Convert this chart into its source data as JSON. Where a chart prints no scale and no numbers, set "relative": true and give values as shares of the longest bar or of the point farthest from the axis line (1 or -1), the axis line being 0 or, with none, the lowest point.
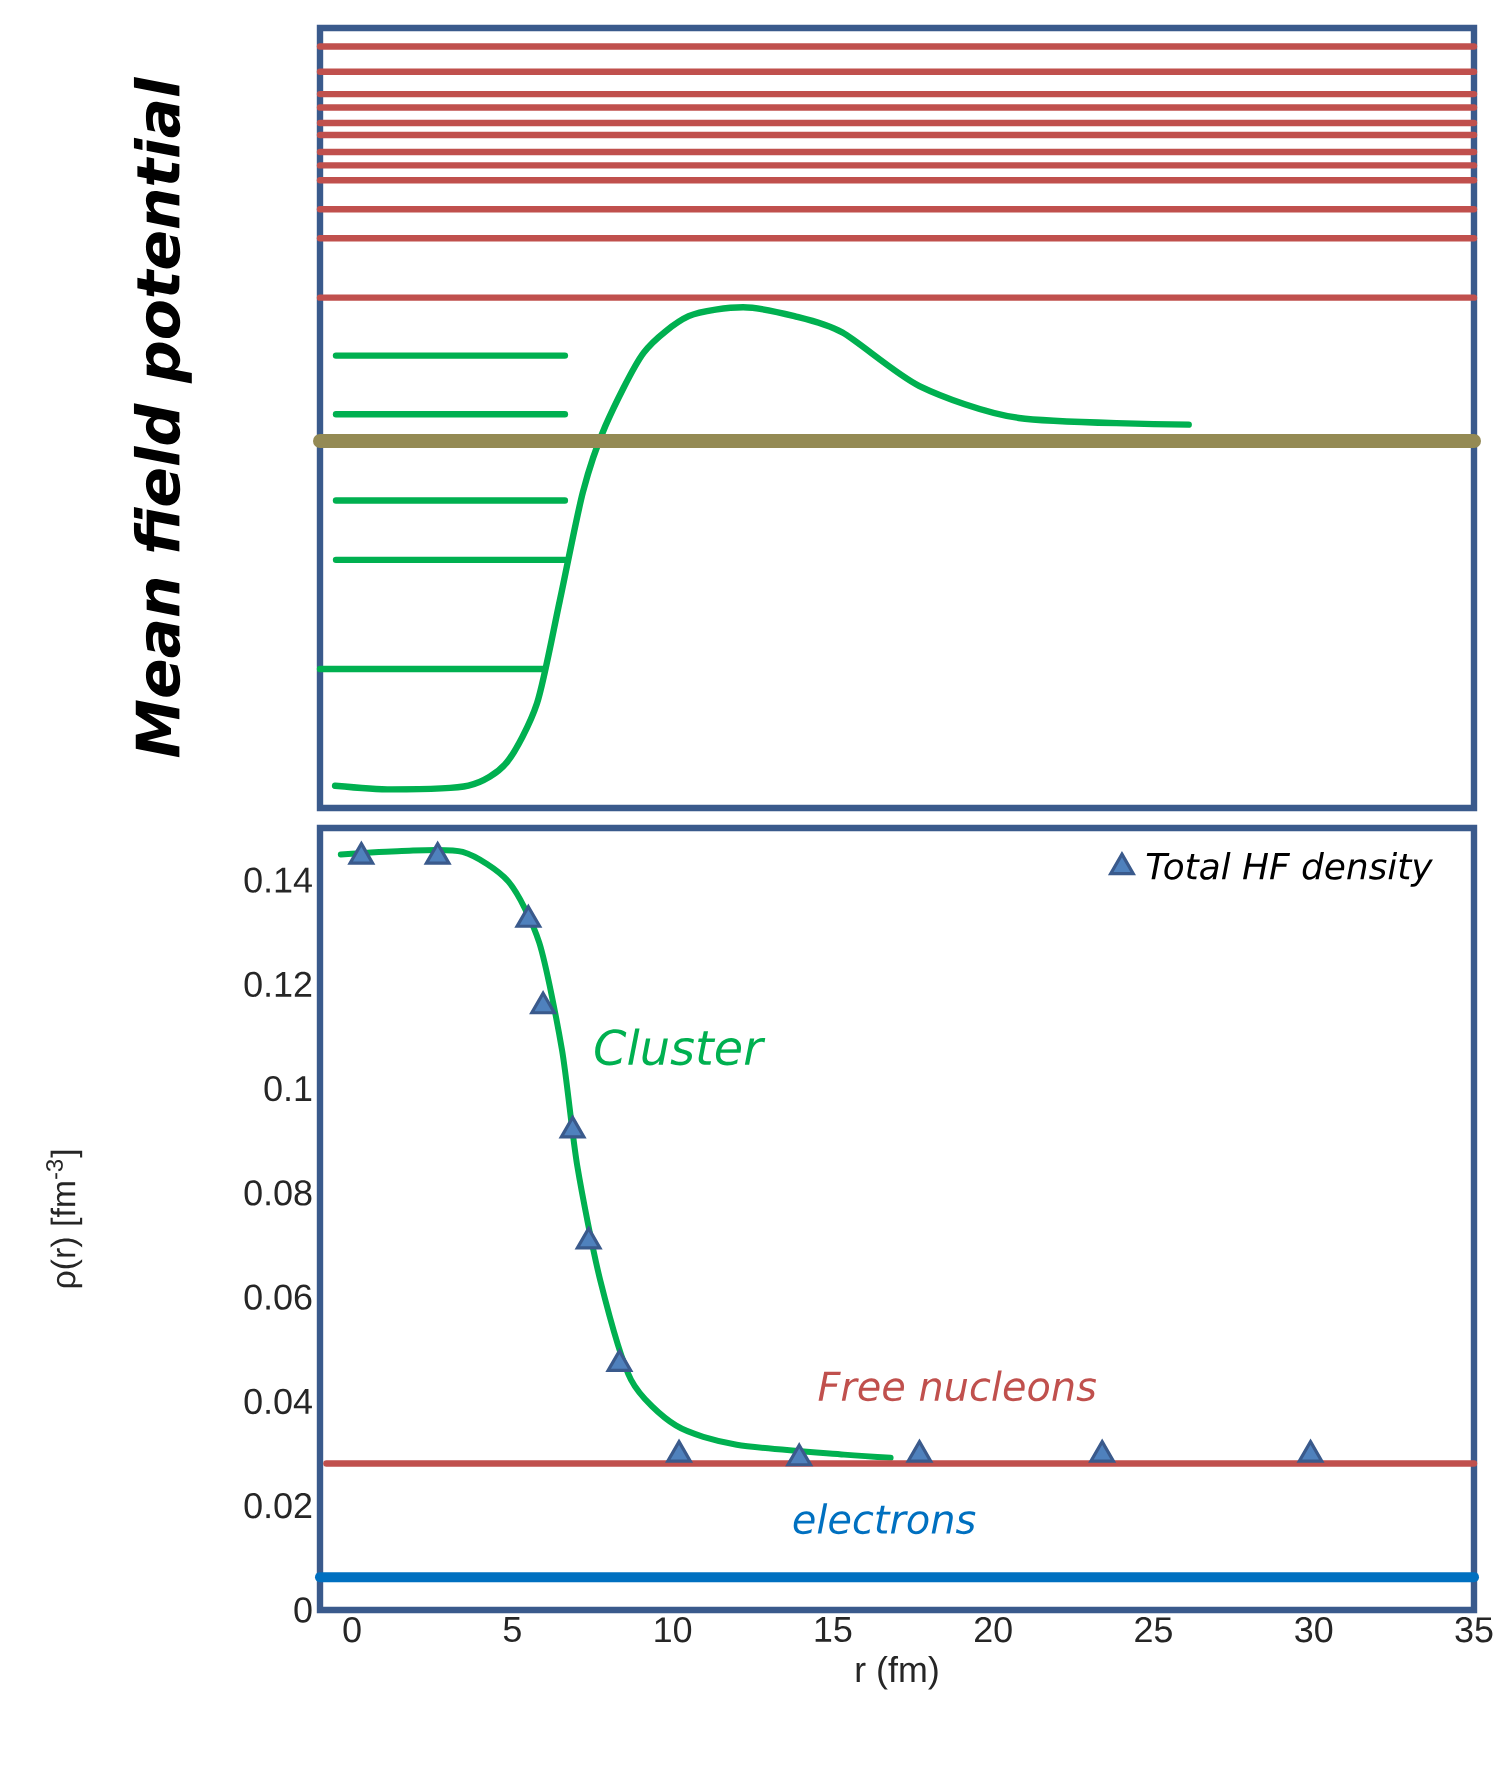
{
  "chart_data": [
    {
      "type": "line",
      "relative": true,
      "ylabel": "Mean field potential",
      "xlim": [
        -1,
        35
      ],
      "series": [
        {
          "color": "#00b050",
          "x": [
            -0.53,
            1.24,
            3.63,
            4.82,
            5.77,
            6.48,
            7.2,
            7.9,
            9.1,
            10.5,
            12.2,
            13.8,
            15.3,
            17.7,
            20.8,
            26.1
          ],
          "values": [
            0.005,
            0,
            0.005,
            0.036,
            0.116,
            0.254,
            0.4,
            0.489,
            0.588,
            0.637,
            0.649,
            0.637,
            0.615,
            0.543,
            0.5,
            0.491
          ]
        },
        {
          "color": "#00b050",
          "x": [
            -0.5,
            6.64
          ],
          "values": [
            0.584,
            0.584
          ]
        },
        {
          "color": "#00b050",
          "x": [
            -0.5,
            6.64
          ],
          "values": [
            0.505,
            0.505
          ]
        },
        {
          "color": "#00b050",
          "x": [
            -0.5,
            6.64
          ],
          "values": [
            0.389,
            0.389
          ]
        },
        {
          "color": "#00b050",
          "x": [
            -0.5,
            6.64
          ],
          "values": [
            0.309,
            0.309
          ]
        },
        {
          "color": "#00b050",
          "x": [
            -1,
            5.96
          ],
          "values": [
            0.162,
            0.162
          ]
        },
        {
          "color": "#c0504d",
          "x": [
            -1,
            35
          ],
          "values": [
            1,
            1
          ]
        },
        {
          "color": "#c0504d",
          "x": [
            -1,
            35
          ],
          "values": [
            0.966,
            0.966
          ]
        },
        {
          "color": "#c0504d",
          "x": [
            -1,
            35
          ],
          "values": [
            0.936,
            0.936
          ]
        },
        {
          "color": "#c0504d",
          "x": [
            -1,
            35
          ],
          "values": [
            0.918,
            0.918
          ]
        },
        {
          "color": "#c0504d",
          "x": [
            -1,
            35
          ],
          "values": [
            0.897,
            0.897
          ]
        },
        {
          "color": "#c0504d",
          "x": [
            -1,
            35
          ],
          "values": [
            0.881,
            0.881
          ]
        },
        {
          "color": "#c0504d",
          "x": [
            -1,
            35
          ],
          "values": [
            0.858,
            0.858
          ]
        },
        {
          "color": "#c0504d",
          "x": [
            -1,
            35
          ],
          "values": [
            0.84,
            0.84
          ]
        },
        {
          "color": "#c0504d",
          "x": [
            -1,
            35
          ],
          "values": [
            0.82,
            0.82
          ]
        },
        {
          "color": "#c0504d",
          "x": [
            -1,
            35
          ],
          "values": [
            0.781,
            0.781
          ]
        },
        {
          "color": "#c0504d",
          "x": [
            -1,
            35
          ],
          "values": [
            0.742,
            0.742
          ]
        },
        {
          "color": "#c0504d",
          "x": [
            -1,
            35
          ],
          "values": [
            0.662,
            0.662
          ]
        },
        {
          "color": "#948a54",
          "x": [
            -1,
            35
          ],
          "values": [
            0.469,
            0.469
          ]
        }
      ]
    },
    {
      "type": "line",
      "xlabel": "r (fm)",
      "ylabel": "ρ(r) [fm$^{-3}$]",
      "xlim": [
        -1,
        35
      ],
      "ylim": [
        0,
        0.15
      ],
      "xticks": [
        0,
        5,
        10,
        15,
        20,
        25,
        30,
        35
      ],
      "yticks": [
        0,
        0.02,
        0.04,
        0.06,
        0.08,
        0.1,
        0.12,
        0.14
      ],
      "legend": "top right",
      "series": [
        {
          "name": "Total HF density",
          "type": "scatter",
          "marker": "triangle",
          "color": "#4f81bd",
          "x": [
            0.29,
            2.67,
            5.5,
            5.96,
            6.88,
            7.38,
            8.34,
            10.2,
            13.95,
            17.7,
            23.4,
            29.9
          ],
          "values": [
            0.1445,
            0.1445,
            0.1324,
            0.1158,
            0.092,
            0.0707,
            0.0472,
            0.0298,
            0.0291,
            0.0298,
            0.0298,
            0.0298
          ]
        },
        {
          "name": "Cluster",
          "color": "#00b050",
          "x": [
            -0.35,
            1.55,
            3.45,
            4.88,
            5.84,
            6.55,
            7.02,
            7.74,
            8.7,
            10.1,
            12.0,
            15.35,
            16.8
          ],
          "values": [
            0.1449,
            0.1456,
            0.1454,
            0.1397,
            0.128,
            0.1074,
            0.0854,
            0.0633,
            0.0442,
            0.0354,
            0.0317,
            0.0298,
            0.0292
          ]
        },
        {
          "name": "Free nucleons",
          "color": "#c0504d",
          "x": [
            -0.8,
            35
          ],
          "values": [
            0.0281,
            0.0281
          ]
        },
        {
          "name": "electrons",
          "color": "#0070c0",
          "x": [
            -1,
            35
          ],
          "values": [
            0.0063,
            0.0063
          ]
        }
      ]
    }
  ]
}
